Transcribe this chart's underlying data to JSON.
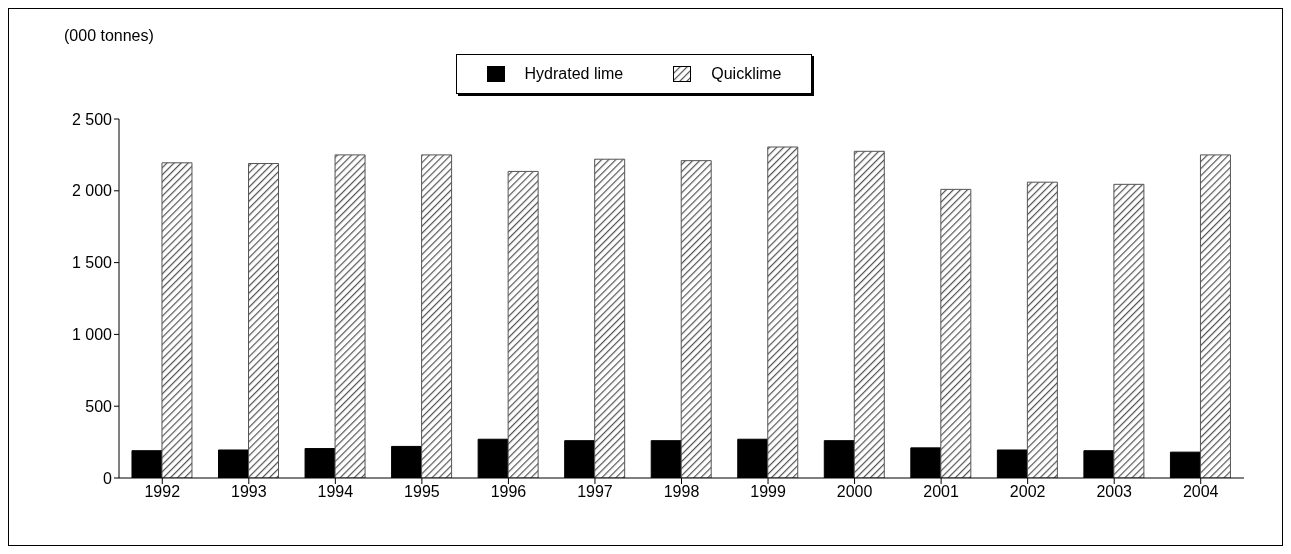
{
  "chart_data": {
    "type": "bar",
    "ylabel": "(000 tonnes)",
    "categories": [
      "1992",
      "1993",
      "1994",
      "1995",
      "1996",
      "1997",
      "1998",
      "1999",
      "2000",
      "2001",
      "2002",
      "2003",
      "2004"
    ],
    "series": [
      {
        "name": "Hydrated lime",
        "color": "#000000",
        "values": [
          190,
          195,
          205,
          220,
          270,
          260,
          260,
          270,
          260,
          210,
          195,
          190,
          180
        ]
      },
      {
        "name": "Quicklime",
        "color": "#555555",
        "values": [
          2195,
          2190,
          2250,
          2250,
          2135,
          2220,
          2210,
          2305,
          2275,
          2010,
          2060,
          2045,
          2250
        ]
      }
    ],
    "ylim": [
      0,
      2500
    ],
    "yticks": [
      0,
      500,
      {
        "value": 1000,
        "label": "1 000"
      },
      {
        "value": 1500,
        "label": "1 500"
      },
      {
        "value": 2000,
        "label": "2 000"
      },
      {
        "value": 2500,
        "label": "2 500"
      }
    ],
    "grid": false,
    "legend": "top"
  }
}
